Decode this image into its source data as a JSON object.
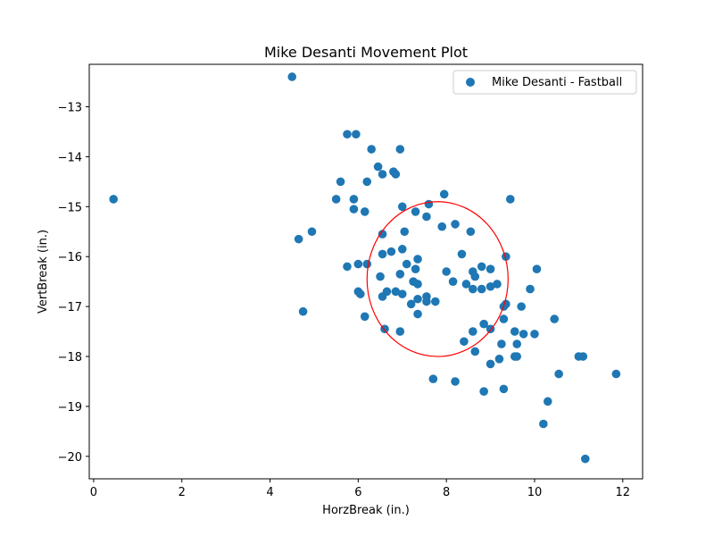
{
  "chart_data": {
    "type": "scatter",
    "title": "Mike Desanti Movement Plot",
    "xlabel": "HorzBreak (in.)",
    "ylabel": "VertBreak (in.)",
    "xlim": [
      -0.1,
      12.45
    ],
    "ylim": [
      -20.45,
      -12.15
    ],
    "x_ticks": [
      0,
      2,
      4,
      6,
      8,
      10,
      12
    ],
    "y_ticks": [
      -13,
      -14,
      -15,
      -16,
      -17,
      -18,
      -19,
      -20
    ],
    "x_tick_labels": [
      "0",
      "2",
      "4",
      "6",
      "8",
      "10",
      "12"
    ],
    "y_tick_labels": [
      "−13",
      "−14",
      "−15",
      "−16",
      "−17",
      "−18",
      "−19",
      "−20"
    ],
    "grid": false,
    "legend_position": "top-right",
    "colors": {
      "marker": "#1f77b4",
      "ellipse": "#ff0000"
    },
    "series": [
      {
        "name": "Mike Desanti - Fastball",
        "points": [
          [
            4.5,
            -12.4
          ],
          [
            0.45,
            -14.85
          ],
          [
            5.75,
            -13.55
          ],
          [
            5.95,
            -13.55
          ],
          [
            6.3,
            -13.85
          ],
          [
            6.95,
            -13.85
          ],
          [
            6.45,
            -14.2
          ],
          [
            6.8,
            -14.3
          ],
          [
            6.55,
            -14.35
          ],
          [
            6.85,
            -14.35
          ],
          [
            5.6,
            -14.5
          ],
          [
            6.2,
            -14.5
          ],
          [
            5.5,
            -14.85
          ],
          [
            5.9,
            -14.85
          ],
          [
            7.95,
            -14.75
          ],
          [
            9.45,
            -14.85
          ],
          [
            7.6,
            -14.95
          ],
          [
            5.9,
            -15.05
          ],
          [
            6.15,
            -15.1
          ],
          [
            7.0,
            -15.0
          ],
          [
            7.3,
            -15.1
          ],
          [
            7.55,
            -15.2
          ],
          [
            8.2,
            -15.35
          ],
          [
            7.9,
            -15.4
          ],
          [
            7.05,
            -15.5
          ],
          [
            4.95,
            -15.5
          ],
          [
            8.55,
            -15.5
          ],
          [
            6.55,
            -15.55
          ],
          [
            4.65,
            -15.65
          ],
          [
            7.0,
            -15.85
          ],
          [
            6.55,
            -15.95
          ],
          [
            6.75,
            -15.9
          ],
          [
            8.35,
            -15.95
          ],
          [
            7.35,
            -16.05
          ],
          [
            9.35,
            -16.0
          ],
          [
            5.75,
            -16.2
          ],
          [
            6.0,
            -16.15
          ],
          [
            6.2,
            -16.15
          ],
          [
            7.1,
            -16.15
          ],
          [
            8.8,
            -16.2
          ],
          [
            9.0,
            -16.25
          ],
          [
            10.05,
            -16.25
          ],
          [
            8.0,
            -16.3
          ],
          [
            8.6,
            -16.3
          ],
          [
            7.3,
            -16.25
          ],
          [
            6.5,
            -16.4
          ],
          [
            6.95,
            -16.35
          ],
          [
            8.65,
            -16.4
          ],
          [
            7.25,
            -16.5
          ],
          [
            7.35,
            -16.55
          ],
          [
            8.15,
            -16.5
          ],
          [
            8.45,
            -16.55
          ],
          [
            9.15,
            -16.55
          ],
          [
            8.6,
            -16.65
          ],
          [
            8.8,
            -16.65
          ],
          [
            9.0,
            -16.6
          ],
          [
            9.9,
            -16.65
          ],
          [
            6.0,
            -16.7
          ],
          [
            6.05,
            -16.75
          ],
          [
            6.65,
            -16.7
          ],
          [
            6.85,
            -16.7
          ],
          [
            7.0,
            -16.75
          ],
          [
            6.55,
            -16.8
          ],
          [
            7.35,
            -16.85
          ],
          [
            7.55,
            -16.8
          ],
          [
            7.55,
            -16.9
          ],
          [
            7.75,
            -16.9
          ],
          [
            7.2,
            -16.95
          ],
          [
            9.35,
            -16.95
          ],
          [
            9.3,
            -17.0
          ],
          [
            9.7,
            -17.0
          ],
          [
            4.75,
            -17.1
          ],
          [
            7.35,
            -17.15
          ],
          [
            6.15,
            -17.2
          ],
          [
            9.3,
            -17.25
          ],
          [
            10.45,
            -17.25
          ],
          [
            8.85,
            -17.35
          ],
          [
            9.0,
            -17.45
          ],
          [
            6.6,
            -17.45
          ],
          [
            6.95,
            -17.5
          ],
          [
            8.6,
            -17.5
          ],
          [
            9.55,
            -17.5
          ],
          [
            9.75,
            -17.55
          ],
          [
            10.0,
            -17.55
          ],
          [
            8.4,
            -17.7
          ],
          [
            9.25,
            -17.75
          ],
          [
            9.6,
            -17.75
          ],
          [
            8.65,
            -17.9
          ],
          [
            9.55,
            -18.0
          ],
          [
            9.6,
            -18.0
          ],
          [
            9.2,
            -18.05
          ],
          [
            11.0,
            -18.0
          ],
          [
            11.1,
            -18.0
          ],
          [
            9.0,
            -18.15
          ],
          [
            10.55,
            -18.35
          ],
          [
            11.85,
            -18.35
          ],
          [
            7.7,
            -18.45
          ],
          [
            8.2,
            -18.5
          ],
          [
            9.3,
            -18.65
          ],
          [
            8.85,
            -18.7
          ],
          [
            10.3,
            -18.9
          ],
          [
            10.2,
            -19.35
          ],
          [
            11.15,
            -20.05
          ]
        ]
      }
    ],
    "ellipse": {
      "cx": 7.8,
      "cy": -16.45,
      "rx": 1.6,
      "ry": 1.55
    }
  }
}
